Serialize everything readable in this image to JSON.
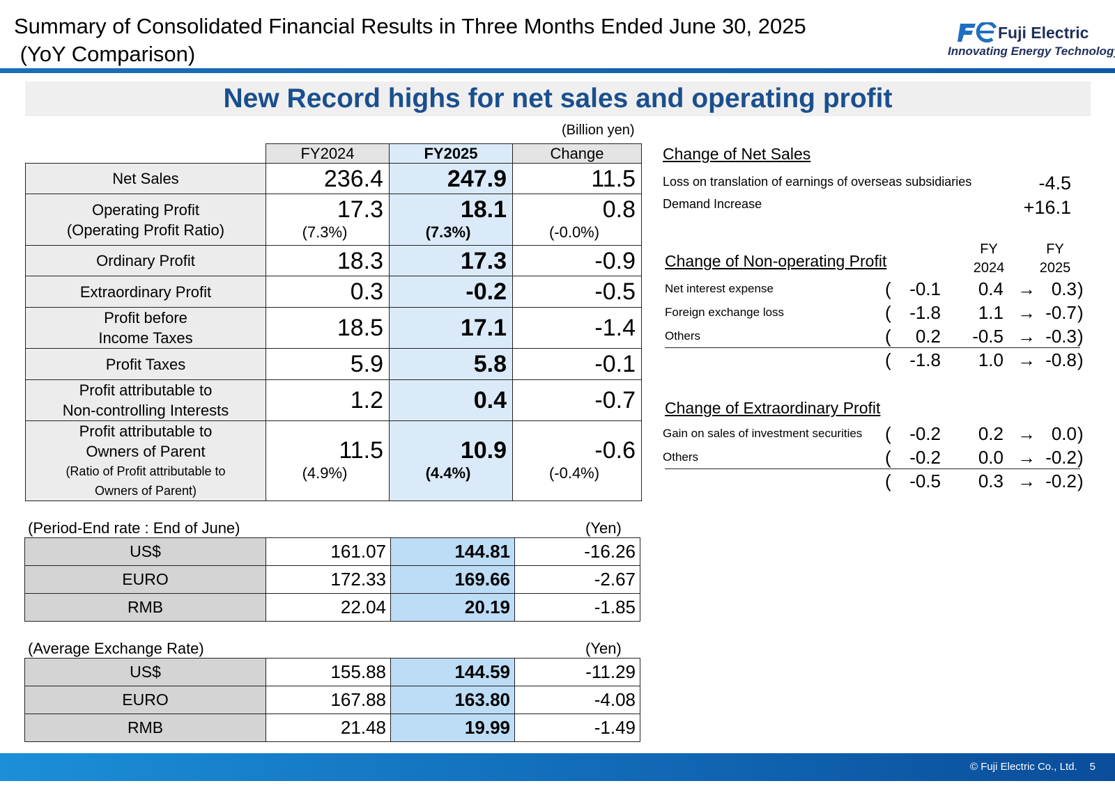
{
  "header": {
    "title": "Summary of Consolidated Financial Results in Three Months Ended June 30, 2025\n (YoY Comparison)",
    "logo_name": "Fuji Electric",
    "logo_tagline": "Innovating Energy Technology"
  },
  "banner": "New Record highs for net sales and operating profit",
  "main_table": {
    "unit": "(Billion yen)",
    "columns": [
      "FY2024",
      "FY2025",
      "Change"
    ],
    "rows": [
      {
        "label": "Net Sales",
        "fy2024": "236.4",
        "fy2025": "247.9",
        "change": "11.5"
      },
      {
        "label": "Operating Profit",
        "sublabel": "(Operating Profit Ratio)",
        "fy2024": "17.3",
        "fy2024_sub": "(7.3%)",
        "fy2025": "18.1",
        "fy2025_sub": "(7.3%)",
        "change": "0.8",
        "change_sub": "(-0.0%)"
      },
      {
        "label": "Ordinary Profit",
        "fy2024": "18.3",
        "fy2025": "17.3",
        "change": "-0.9"
      },
      {
        "label": "Extraordinary Profit",
        "fy2024": "0.3",
        "fy2025": "-0.2",
        "change": "-0.5"
      },
      {
        "label": "Profit before",
        "label2": "Income Taxes",
        "fy2024": "18.5",
        "fy2025": "17.1",
        "change": "-1.4"
      },
      {
        "label": "Profit Taxes",
        "fy2024": "5.9",
        "fy2025": "5.8",
        "change": "-0.1"
      },
      {
        "label": "Profit attributable to",
        "label2": "Non-controlling Interests",
        "fy2024": "1.2",
        "fy2025": "0.4",
        "change": "-0.7"
      },
      {
        "label": "Profit attributable to",
        "label2": "Owners of Parent",
        "sublabel": "(Ratio of Profit attributable to",
        "sublabel2": "Owners of Parent)",
        "fy2024": "11.5",
        "fy2024_sub": "(4.9%)",
        "fy2025": "10.9",
        "fy2025_sub": "(4.4%)",
        "change": "-0.6",
        "change_sub": "(-0.4%)"
      }
    ]
  },
  "period_end": {
    "caption": "(Period-End rate : End of June)",
    "unit": "(Yen)",
    "rows": [
      {
        "label": "US$",
        "fy2024": "161.07",
        "fy2025": "144.81",
        "change": "-16.26"
      },
      {
        "label": "EURO",
        "fy2024": "172.33",
        "fy2025": "169.66",
        "change": "-2.67"
      },
      {
        "label": "RMB",
        "fy2024": "22.04",
        "fy2025": "20.19",
        "change": "-1.85"
      }
    ]
  },
  "average_rate": {
    "caption": "(Average Exchange Rate)",
    "unit": "(Yen)",
    "rows": [
      {
        "label": "US$",
        "fy2024": "155.88",
        "fy2025": "144.59",
        "change": "-11.29"
      },
      {
        "label": "EURO",
        "fy2024": "167.88",
        "fy2025": "163.80",
        "change": "-4.08"
      },
      {
        "label": "RMB",
        "fy2024": "21.48",
        "fy2025": "19.99",
        "change": "-1.49"
      }
    ]
  },
  "net_sales_change": {
    "heading": "Change of Net Sales",
    "items": [
      {
        "label": "Loss on translation of earnings of overseas subsidiaries",
        "value": "-4.5"
      },
      {
        "label": "Demand Increase",
        "value": "+16.1"
      }
    ]
  },
  "non_operating": {
    "heading": "Change of Non-operating Profit",
    "col_fy": "FY",
    "col_2024": "2024",
    "col_2025": "2025",
    "items": [
      {
        "label": "Net interest expense",
        "change": "-0.1",
        "fy2024": "0.4",
        "fy2025": "0.3"
      },
      {
        "label": "Foreign exchange loss",
        "change": "-1.8",
        "fy2024": "1.1",
        "fy2025": "-0.7"
      },
      {
        "label": "Others",
        "change": "0.2",
        "fy2024": "-0.5",
        "fy2025": "-0.3"
      }
    ],
    "total": {
      "change": "-1.8",
      "fy2024": "1.0",
      "fy2025": "-0.8"
    }
  },
  "extraordinary": {
    "heading": "Change of Extraordinary Profit",
    "items": [
      {
        "label": "Gain on sales of investment securities",
        "change": "-0.2",
        "fy2024": "0.2",
        "fy2025": "0.0"
      },
      {
        "label": "Others",
        "change": "-0.2",
        "fy2024": "0.0",
        "fy2025": "-0.2"
      }
    ],
    "total": {
      "change": "-0.5",
      "fy2024": "0.3",
      "fy2025": "-0.2"
    }
  },
  "symbols": {
    "open": "(",
    "close": ")",
    "arrow": "→"
  },
  "footer": {
    "copyright": "© Fuji Electric Co., Ltd.",
    "page": "5"
  },
  "colors": {
    "brand_blue": "#1a4f8e",
    "fy2025_fill": "#dbeaf8",
    "fx_fy2025_fill": "#bddcf6",
    "label_fill": "#ececec"
  }
}
